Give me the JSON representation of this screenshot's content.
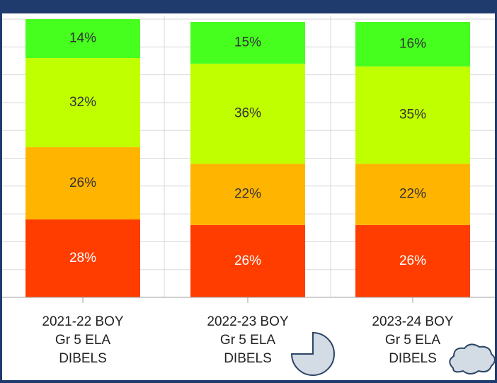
{
  "chart_data": {
    "type": "stacked_bar",
    "categories": [
      [
        "2021-22 BOY",
        "Gr 5 ELA",
        "DIBELS"
      ],
      [
        "2022-23 BOY",
        "Gr 5 ELA",
        "DIBELS"
      ],
      [
        "2023-24 BOY",
        "Gr 5 ELA",
        "DIBELS"
      ]
    ],
    "series": [
      {
        "color": "#ff3d00",
        "label_color": "#ffffff",
        "values": [
          28,
          26,
          26
        ],
        "value_labels": [
          "28%",
          "26%",
          "26%"
        ]
      },
      {
        "color": "#ffb400",
        "label_color": "#333333",
        "values": [
          26,
          22,
          22
        ],
        "value_labels": [
          "26%",
          "22%",
          "22%"
        ]
      },
      {
        "color": "#bfff00",
        "label_color": "#333333",
        "values": [
          32,
          36,
          35
        ],
        "value_labels": [
          "32%",
          "36%",
          "35%"
        ]
      },
      {
        "color": "#46ff1e",
        "label_color": "#333333",
        "values": [
          14,
          15,
          16
        ],
        "value_labels": [
          "14%",
          "15%",
          "16%"
        ]
      }
    ],
    "ylim": [
      0,
      100
    ],
    "yticks": [
      0,
      10,
      20,
      30,
      40,
      50,
      60,
      70,
      80,
      90,
      100
    ],
    "grid": true
  }
}
